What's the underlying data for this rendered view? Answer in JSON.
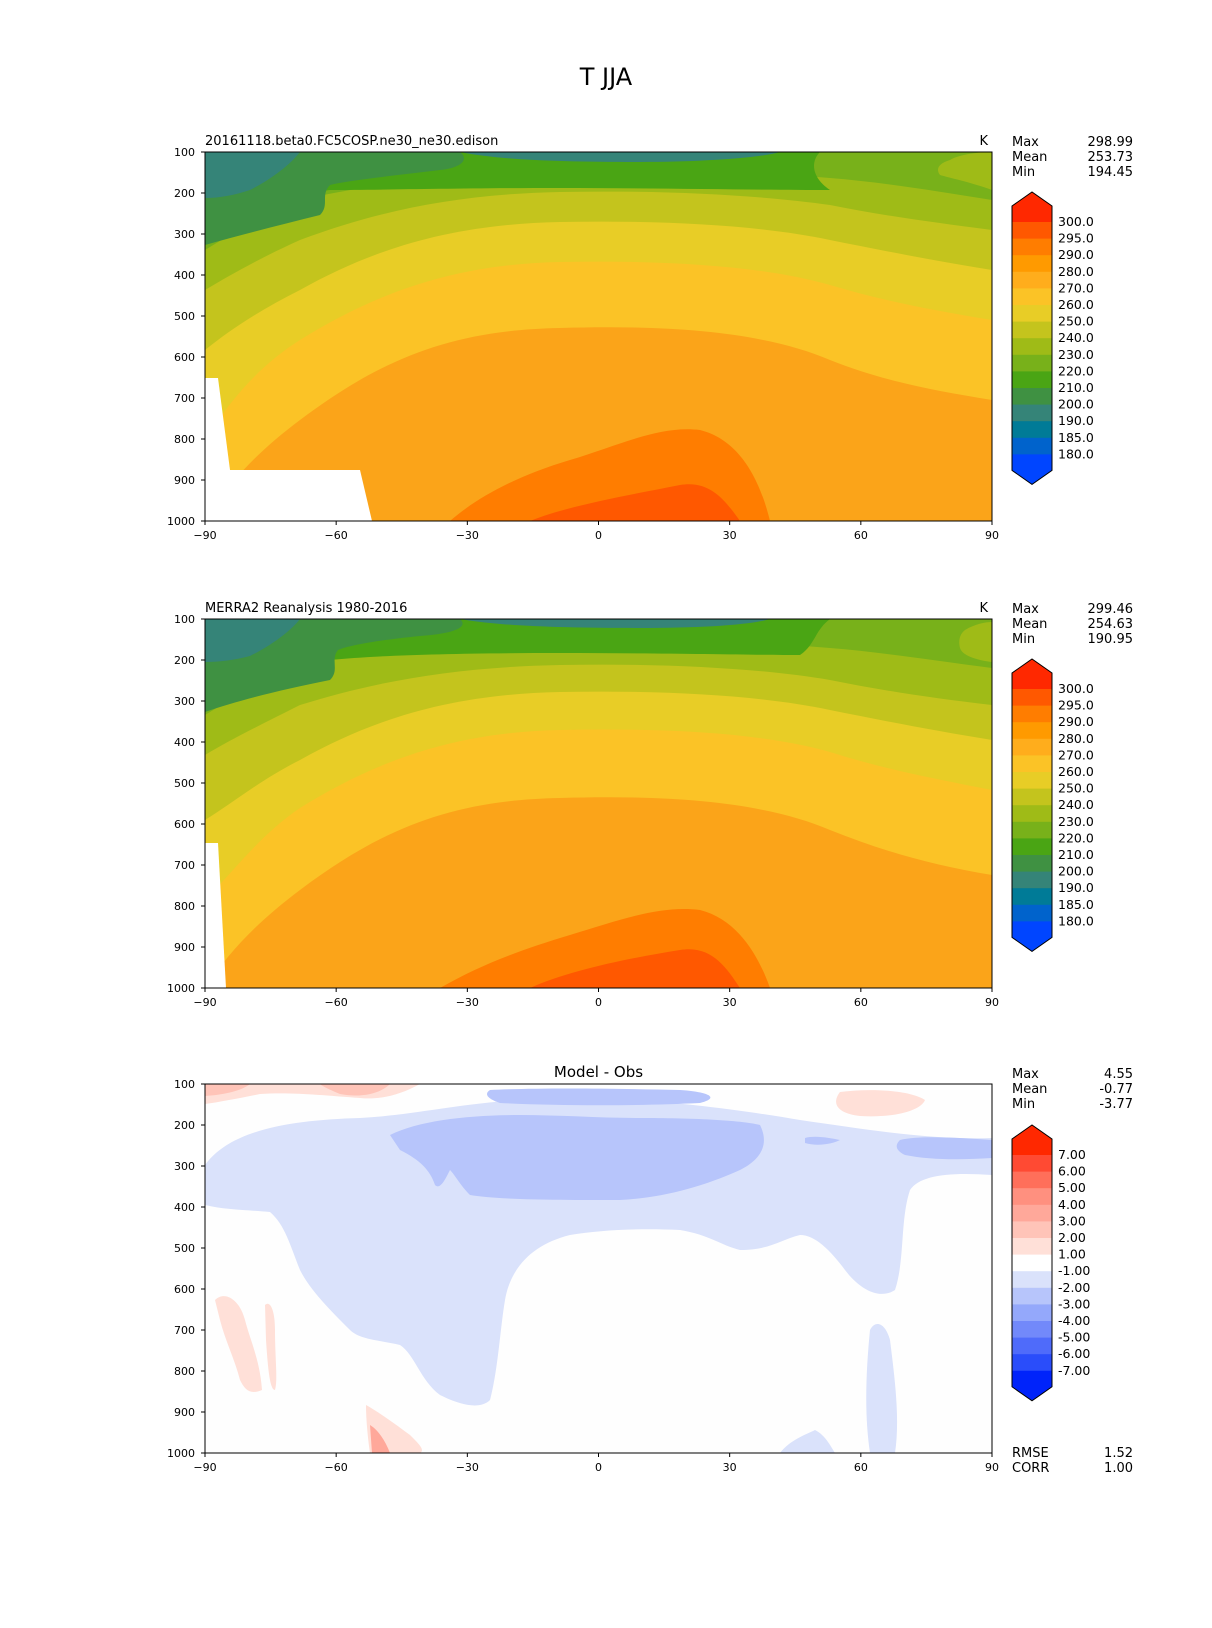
{
  "figure": {
    "title": "T JJA"
  },
  "chart_data": [
    {
      "type": "contourf",
      "title": "20161118.beta0.FC5COSP.ne30_ne30.edison",
      "units": "K",
      "xlabel": "",
      "ylabel": "",
      "x_ticks": [
        "−90",
        "−60",
        "−30",
        "0",
        "30",
        "60",
        "90"
      ],
      "y_ticks": [
        "100",
        "200",
        "300",
        "400",
        "500",
        "600",
        "700",
        "800",
        "900",
        "1000"
      ],
      "xlim": [
        -90,
        90
      ],
      "ylim": [
        1000,
        100
      ],
      "stats": [
        {
          "label": "Max",
          "value": "298.99"
        },
        {
          "label": "Mean",
          "value": "253.73"
        },
        {
          "label": "Min",
          "value": "194.45"
        }
      ],
      "colorbar": {
        "levels": [
          "300.0",
          "295.0",
          "290.0",
          "280.0",
          "270.0",
          "260.0",
          "250.0",
          "240.0",
          "230.0",
          "220.0",
          "210.0",
          "200.0",
          "190.0",
          "185.0",
          "180.0"
        ],
        "colors": [
          "#ff2800",
          "#ff5800",
          "#ff7d00",
          "#ff9a00",
          "#ffad1c",
          "#fbc326",
          "#e8cd26",
          "#c4c41d",
          "#9fbb17",
          "#78b11a",
          "#4aa514",
          "#3f9142",
          "#358478",
          "#007b97",
          "#0063cc",
          "#0045ff"
        ]
      }
    },
    {
      "type": "contourf",
      "title": "MERRA2 Reanalysis 1980-2016",
      "units": "K",
      "xlabel": "",
      "ylabel": "",
      "x_ticks": [
        "−90",
        "−60",
        "−30",
        "0",
        "30",
        "60",
        "90"
      ],
      "y_ticks": [
        "100",
        "200",
        "300",
        "400",
        "500",
        "600",
        "700",
        "800",
        "900",
        "1000"
      ],
      "xlim": [
        -90,
        90
      ],
      "ylim": [
        1000,
        100
      ],
      "stats": [
        {
          "label": "Max",
          "value": "299.46"
        },
        {
          "label": "Mean",
          "value": "254.63"
        },
        {
          "label": "Min",
          "value": "190.95"
        }
      ],
      "colorbar": {
        "levels": [
          "300.0",
          "295.0",
          "290.0",
          "280.0",
          "270.0",
          "260.0",
          "250.0",
          "240.0",
          "230.0",
          "220.0",
          "210.0",
          "200.0",
          "190.0",
          "185.0",
          "180.0"
        ],
        "colors": [
          "#ff2800",
          "#ff5800",
          "#ff7d00",
          "#ff9a00",
          "#ffad1c",
          "#fbc326",
          "#e8cd26",
          "#c4c41d",
          "#9fbb17",
          "#78b11a",
          "#4aa514",
          "#3f9142",
          "#358478",
          "#007b97",
          "#0063cc",
          "#0045ff"
        ]
      }
    },
    {
      "type": "contourf",
      "title": "Model - Obs",
      "units": "",
      "xlabel": "",
      "ylabel": "",
      "x_ticks": [
        "−90",
        "−60",
        "−30",
        "0",
        "30",
        "60",
        "90"
      ],
      "y_ticks": [
        "100",
        "200",
        "300",
        "400",
        "500",
        "600",
        "700",
        "800",
        "900",
        "1000"
      ],
      "xlim": [
        -90,
        90
      ],
      "ylim": [
        1000,
        100
      ],
      "stats": [
        {
          "label": "Max",
          "value": "4.55"
        },
        {
          "label": "Mean",
          "value": "-0.77"
        },
        {
          "label": "Min",
          "value": "-3.77"
        }
      ],
      "bottom_stats": [
        {
          "label": "RMSE",
          "value": "1.52"
        },
        {
          "label": "CORR",
          "value": "1.00"
        }
      ],
      "colorbar": {
        "levels": [
          "7.00",
          "6.00",
          "5.00",
          "4.00",
          "3.00",
          "2.00",
          "1.00",
          "-1.00",
          "-2.00",
          "-3.00",
          "-4.00",
          "-5.00",
          "-6.00",
          "-7.00"
        ],
        "colors": [
          "#ff2800",
          "#ff4a33",
          "#ff6f5a",
          "#ff907f",
          "#ffa89a",
          "#ffc4b8",
          "#ffe0d8",
          "#ffffff",
          "#dae2fb",
          "#b7c5fb",
          "#94a8fb",
          "#7289fa",
          "#4f6bfa",
          "#2a4dfa",
          "#0023fa"
        ]
      }
    }
  ]
}
